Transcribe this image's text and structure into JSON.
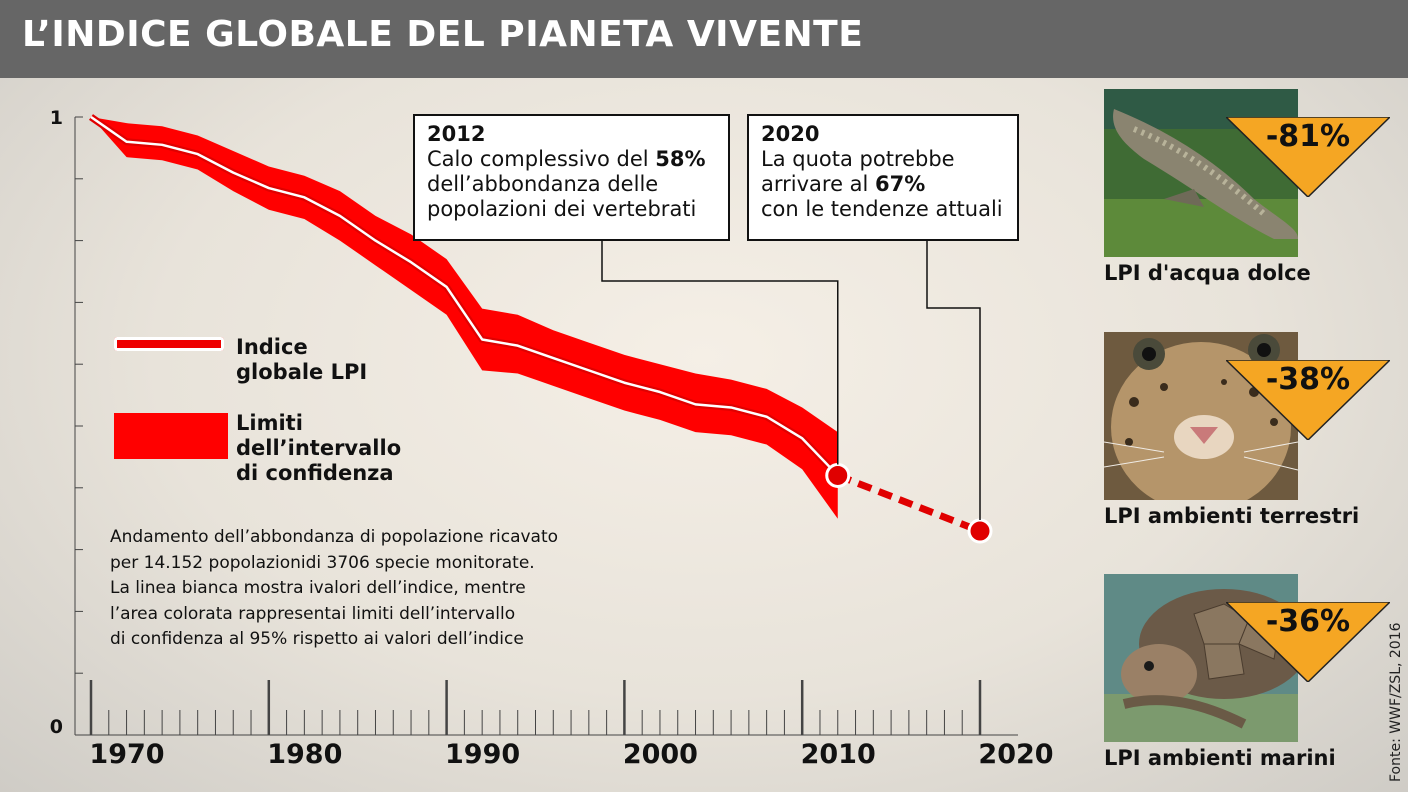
{
  "header": {
    "title": "L’INDICE GLOBALE DEL PIANETA VIVENTE"
  },
  "chart_data": {
    "type": "line",
    "y_tick_labels": [
      "1",
      "0"
    ],
    "x_tick_labels": [
      "1970",
      "1980",
      "1990",
      "2000",
      "2010",
      "2020"
    ],
    "ylim": [
      0,
      1
    ],
    "xlim": [
      1970,
      2020
    ],
    "series": [
      {
        "name": "Indice globale LPI",
        "x": [
          1970,
          1972,
          1974,
          1976,
          1978,
          1980,
          1982,
          1984,
          1986,
          1988,
          1990,
          1992,
          1994,
          1996,
          1998,
          2000,
          2002,
          2004,
          2006,
          2008,
          2010,
          2012
        ],
        "y": [
          1.0,
          0.96,
          0.955,
          0.94,
          0.91,
          0.885,
          0.87,
          0.84,
          0.8,
          0.765,
          0.725,
          0.64,
          0.63,
          0.61,
          0.59,
          0.57,
          0.555,
          0.535,
          0.53,
          0.515,
          0.48,
          0.42
        ]
      },
      {
        "name": "Limiti dell’intervallo di confidenza",
        "x": [
          1970,
          1972,
          1974,
          1976,
          1978,
          1980,
          1982,
          1984,
          1986,
          1988,
          1990,
          1992,
          1994,
          1996,
          1998,
          2000,
          2002,
          2004,
          2006,
          2008,
          2010,
          2012
        ],
        "upper": [
          1.0,
          0.99,
          0.985,
          0.97,
          0.945,
          0.92,
          0.905,
          0.88,
          0.84,
          0.81,
          0.77,
          0.69,
          0.68,
          0.655,
          0.635,
          0.615,
          0.6,
          0.585,
          0.575,
          0.56,
          0.53,
          0.49
        ],
        "lower": [
          1.0,
          0.935,
          0.93,
          0.915,
          0.88,
          0.85,
          0.835,
          0.8,
          0.76,
          0.72,
          0.68,
          0.59,
          0.585,
          0.565,
          0.545,
          0.525,
          0.51,
          0.49,
          0.485,
          0.47,
          0.43,
          0.35
        ]
      },
      {
        "name": "",
        "style": "dashed",
        "x": [
          2012,
          2020
        ],
        "y": [
          0.42,
          0.33
        ]
      }
    ],
    "grid": false,
    "legend_position": "left"
  },
  "callouts": [
    {
      "year": "2012",
      "line1_pre": "Calo complessivo del ",
      "line1_bold": "58%",
      "line2": "dell’abbondanza delle",
      "line3": "popolazioni dei vertebrati"
    },
    {
      "year": "2020",
      "line1": "La quota potrebbe",
      "line2_pre": "arrivare al ",
      "line2_bold": "67%",
      "line3": "con le tendenze attuali"
    }
  ],
  "legend": {
    "line_label_1": "Indice",
    "line_label_2": "globale LPI",
    "band_label_1": "Limiti",
    "band_label_2": "dell’intervallo",
    "band_label_3": "di confidenza"
  },
  "note": [
    "Andamento dell’abbondanza di popolazione ricavato",
    "per 14.152 popolazionidi 3706 specie monitorate.",
    "La linea bianca mostra ivalori dell’indice, mentre",
    "l’area colorata rappresentai limiti dell’intervallo",
    "di confidenza al 95% rispetto ai valori dell’indice"
  ],
  "panels": [
    {
      "label": "LPI d'acqua dolce",
      "value": "-81%",
      "icon": "lungfish-photo"
    },
    {
      "label": "LPI ambienti terrestri",
      "value": "-38%",
      "icon": "leopard-photo"
    },
    {
      "label": "LPI ambienti marini",
      "value": "-36%",
      "icon": "sea-turtle-photo"
    }
  ],
  "source": "Fonte: WWF/ZSL, 2016",
  "colors": {
    "header": "#666666",
    "band": "#ff0000",
    "line": "#ffffff",
    "badge": "#f5a623"
  }
}
